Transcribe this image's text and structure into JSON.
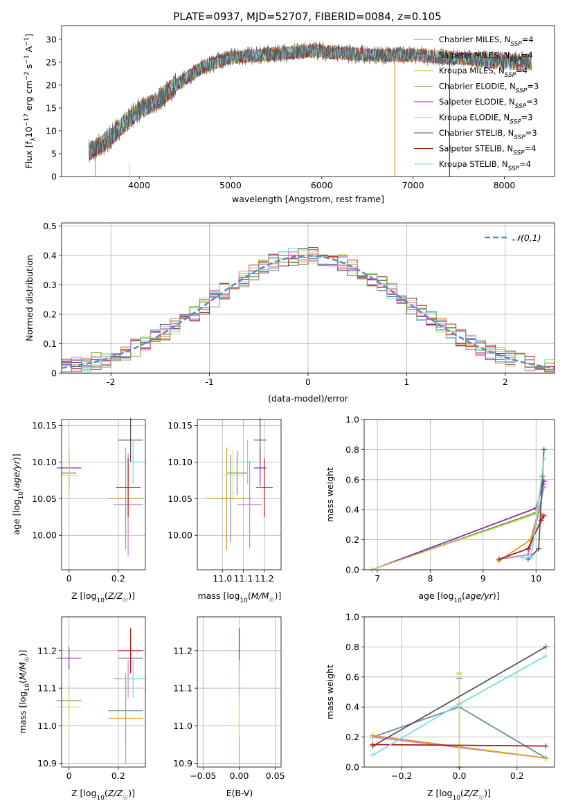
{
  "figure": {
    "title": "PLATE=0937, MJD=52707, FIBERID=0084, z=0.105",
    "normal_label": "𝒩(0,1)"
  },
  "colors": {
    "Chabrier MILES": "#6a8fa6",
    "Salpeter MILES": "#c47fd6",
    "Kroupa MILES": "#d6a020",
    "Chabrier ELODIE": "#6a9a40",
    "Salpeter ELODIE": "#8e2bb0",
    "Kroupa ELODIE": "#d8e070",
    "Chabrier STELIB": "#555555",
    "Salpeter STELIB": "#aa1c1c",
    "Kroupa STELIB": "#7ed6de",
    "normal_curve": "#5a88cc",
    "hist_extra_orange": "#e8702a",
    "hist_extra_pink": "#e080b8"
  },
  "chart_data": [
    {
      "type": "line",
      "title": "PLATE=0937, MJD=52707, FIBERID=0084, z=0.105",
      "xlabel": "wavelength [Angstrom, rest frame]",
      "ylabel": "Flux [f_λ 10^-17 erg cm^-2 s^-1 A^-1]",
      "xlim": [
        3150,
        8550
      ],
      "ylim": [
        0,
        33
      ],
      "xticks": [
        4000,
        5000,
        6000,
        7000,
        8000
      ],
      "yticks": [
        0,
        5,
        10,
        15,
        20,
        25,
        30
      ],
      "grid": false,
      "legend_position": "top-right",
      "legend": [
        "Chabrier MILES, N_SSP=4",
        "Salpeter MILES, N_SSP=4",
        "Kroupa MILES, N_SSP=4",
        "Chabrier ELODIE, N_SSP=3",
        "Salpeter ELODIE, N_SSP=3",
        "Kroupa ELODIE, N_SSP=3",
        "Chabrier STELIB, N_SSP=3",
        "Salpeter STELIB, N_SSP=4",
        "Kroupa STELIB, N_SSP=4"
      ],
      "envelope": {
        "x": [
          3450,
          3600,
          3800,
          4000,
          4200,
          4400,
          4700,
          5000,
          5300,
          5600,
          5900,
          6200,
          6600,
          7000,
          7400,
          7800,
          8300
        ],
        "y": [
          5.5,
          7,
          11,
          14.5,
          16.5,
          20,
          24,
          26,
          26.5,
          27,
          27.5,
          27,
          26.5,
          26.5,
          26,
          25.5,
          25
        ]
      },
      "dropouts": [
        {
          "x": 3520,
          "y_from": 3.5,
          "y_to": 0,
          "series": "Salpeter MILES"
        },
        {
          "x": 3890,
          "y_from": 3,
          "y_to": 0,
          "series": "Kroupa ELODIE"
        },
        {
          "x": 6800,
          "y_from": 26,
          "y_to": 0,
          "series": "Kroupa MILES"
        },
        {
          "x": 7400,
          "y_from": 26,
          "y_to": 0,
          "series": "Salpeter STELIB"
        }
      ]
    },
    {
      "type": "histogram",
      "xlabel": "(data-model)/error",
      "ylabel": "Normed distribution",
      "xlim": [
        -2.5,
        2.5
      ],
      "ylim": [
        0,
        0.51
      ],
      "xticks": [
        -2,
        -1,
        0,
        1,
        2
      ],
      "yticks": [
        0.0,
        0.1,
        0.2,
        0.3,
        0.4,
        0.5
      ],
      "grid": true,
      "legend_position": "top-right",
      "bin_width": 0.1,
      "curve": {
        "name": "𝒩(0,1)",
        "style": "dashed"
      }
    },
    {
      "type": "errorbar",
      "xlabel": "Z [log10(Z/Z☉)]",
      "ylabel": "age [log10(age/yr)]",
      "xlim": [
        -0.03,
        0.31
      ],
      "ylim": [
        9.953,
        10.158
      ],
      "xticks": [
        0.0,
        0.2
      ],
      "yticks": [
        10.0,
        10.05,
        10.1,
        10.15
      ],
      "grid": true,
      "points": [
        {
          "series": "Chabrier MILES",
          "x": 0.23,
          "xerr": 0.07,
          "y": 10.05,
          "yerr": 0.06
        },
        {
          "series": "Salpeter MILES",
          "x": 0.24,
          "xerr": 0.06,
          "y": 10.042,
          "yerr": 0.07
        },
        {
          "series": "Kroupa MILES",
          "x": 0.23,
          "xerr": 0.06,
          "y": 10.05,
          "yerr": 0.07
        },
        {
          "series": "Chabrier ELODIE",
          "x": 0.0,
          "xerr": 0.03,
          "y": 10.085,
          "yerr": 0.03
        },
        {
          "series": "Salpeter ELODIE",
          "x": 0.0,
          "xerr": 0.05,
          "y": 10.092,
          "yerr": 0.025
        },
        {
          "series": "Kroupa ELODIE",
          "x": 0.0,
          "xerr": 0.04,
          "y": 10.082,
          "yerr": 0.035
        },
        {
          "series": "Chabrier STELIB",
          "x": 0.25,
          "xerr": 0.05,
          "y": 10.13,
          "yerr": 0.03
        },
        {
          "series": "Salpeter STELIB",
          "x": 0.24,
          "xerr": 0.05,
          "y": 10.065,
          "yerr": 0.04
        },
        {
          "series": "Kroupa STELIB",
          "x": 0.26,
          "xerr": 0.05,
          "y": 10.1,
          "yerr": 0.03
        }
      ]
    },
    {
      "type": "errorbar",
      "xlabel": "mass [log10(M/M☉)]",
      "ylabel": "",
      "xlim": [
        10.88,
        11.28
      ],
      "ylim": [
        9.953,
        10.158
      ],
      "xticks": [
        11.0,
        11.1,
        11.2
      ],
      "yticks": [
        10.0,
        10.05,
        10.1,
        10.15
      ],
      "grid": true,
      "points": [
        {
          "series": "Chabrier MILES",
          "x": 11.04,
          "xerr": 0.1,
          "y": 10.05,
          "yerr": 0.06
        },
        {
          "series": "Salpeter MILES",
          "x": 11.13,
          "xerr": 0.06,
          "y": 10.042,
          "yerr": 0.06
        },
        {
          "series": "Kroupa MILES",
          "x": 11.02,
          "xerr": 0.1,
          "y": 10.05,
          "yerr": 0.07
        },
        {
          "series": "Chabrier ELODIE",
          "x": 11.07,
          "xerr": 0.05,
          "y": 10.085,
          "yerr": 0.03
        },
        {
          "series": "Salpeter ELODIE",
          "x": 11.18,
          "xerr": 0.03,
          "y": 10.092,
          "yerr": 0.025
        },
        {
          "series": "Kroupa ELODIE",
          "x": 11.05,
          "xerr": 0.05,
          "y": 10.082,
          "yerr": 0.035
        },
        {
          "series": "Chabrier STELIB",
          "x": 11.18,
          "xerr": 0.03,
          "y": 10.13,
          "yerr": 0.03
        },
        {
          "series": "Salpeter STELIB",
          "x": 11.2,
          "xerr": 0.04,
          "y": 10.065,
          "yerr": 0.04
        },
        {
          "series": "Kroupa STELIB",
          "x": 11.12,
          "xerr": 0.05,
          "y": 10.1,
          "yerr": 0.03
        }
      ]
    },
    {
      "type": "line",
      "xlabel": "age [log10(age/yr)]",
      "ylabel": "mass weight",
      "xlim": [
        6.75,
        10.35
      ],
      "ylim": [
        0,
        1
      ],
      "xticks": [
        7,
        8,
        9,
        10
      ],
      "yticks": [
        0.0,
        0.2,
        0.4,
        0.6,
        0.8,
        1.0
      ],
      "grid": true,
      "series": [
        {
          "name": "Chabrier MILES",
          "x": [
            9.3,
            9.85,
            10.0,
            10.15
          ],
          "y": [
            0.07,
            0.1,
            0.3,
            0.55
          ]
        },
        {
          "name": "Salpeter MILES",
          "x": [
            9.3,
            9.85,
            10.05,
            10.15
          ],
          "y": [
            0.07,
            0.1,
            0.38,
            0.57
          ]
        },
        {
          "name": "Kroupa MILES",
          "x": [
            9.3,
            9.9,
            10.05,
            10.12
          ],
          "y": [
            0.06,
            0.2,
            0.4,
            0.36
          ]
        },
        {
          "name": "Chabrier ELODIE",
          "x": [
            6.9,
            10.0,
            10.12
          ],
          "y": [
            0.0,
            0.38,
            0.62
          ]
        },
        {
          "name": "Salpeter ELODIE",
          "x": [
            6.9,
            10.0,
            10.15
          ],
          "y": [
            0.0,
            0.41,
            0.59
          ]
        },
        {
          "name": "Kroupa ELODIE",
          "x": [
            6.9,
            10.0,
            10.12
          ],
          "y": [
            0.0,
            0.37,
            0.63
          ]
        },
        {
          "name": "Chabrier STELIB",
          "x": [
            9.85,
            10.05,
            10.15
          ],
          "y": [
            0.07,
            0.14,
            0.8
          ]
        },
        {
          "name": "Salpeter STELIB",
          "x": [
            9.3,
            9.85,
            10.1,
            10.15
          ],
          "y": [
            0.07,
            0.14,
            0.33,
            0.36
          ]
        },
        {
          "name": "Kroupa STELIB",
          "x": [
            9.75,
            9.9,
            10.0,
            10.15
          ],
          "y": [
            0.08,
            0.08,
            0.3,
            0.74
          ]
        }
      ]
    },
    {
      "type": "errorbar",
      "xlabel": "Z [log10(Z/Z☉)]",
      "ylabel": "mass [log10(M/M☉)]",
      "xlim": [
        -0.03,
        0.31
      ],
      "ylim": [
        10.89,
        11.29
      ],
      "xticks": [
        0.0,
        0.2
      ],
      "yticks": [
        10.9,
        11.0,
        11.1,
        11.2
      ],
      "grid": true,
      "points": [
        {
          "series": "Chabrier MILES",
          "x": 0.23,
          "xerr": 0.07,
          "y": 11.04,
          "yerr": 0.08
        },
        {
          "series": "Salpeter MILES",
          "x": 0.24,
          "xerr": 0.06,
          "y": 11.125,
          "yerr": 0.05
        },
        {
          "series": "Kroupa MILES",
          "x": 0.23,
          "xerr": 0.07,
          "y": 11.02,
          "yerr": 0.12
        },
        {
          "series": "Chabrier ELODIE",
          "x": 0.0,
          "xerr": 0.05,
          "y": 11.067,
          "yerr": 0.04
        },
        {
          "series": "Salpeter ELODIE",
          "x": 0.0,
          "xerr": 0.05,
          "y": 11.18,
          "yerr": 0.03
        },
        {
          "series": "Kroupa ELODIE",
          "x": 0.0,
          "xerr": 0.05,
          "y": 11.05,
          "yerr": 0.07
        },
        {
          "series": "Chabrier STELIB",
          "x": 0.25,
          "xerr": 0.05,
          "y": 11.18,
          "yerr": 0.03
        },
        {
          "series": "Salpeter STELIB",
          "x": 0.25,
          "xerr": 0.05,
          "y": 11.2,
          "yerr": 0.06
        },
        {
          "series": "Kroupa STELIB",
          "x": 0.26,
          "xerr": 0.05,
          "y": 11.125,
          "yerr": 0.05
        }
      ]
    },
    {
      "type": "errorbar",
      "xlabel": "E(B-V)",
      "ylabel": "",
      "xlim": [
        -0.058,
        0.058
      ],
      "ylim": [
        10.89,
        11.29
      ],
      "xticks": [
        -0.05,
        0.0,
        0.05
      ],
      "yticks": [
        10.9,
        11.0,
        11.1,
        11.2
      ],
      "grid": true,
      "points": [
        {
          "series": "Kroupa MILES",
          "x": 0.0,
          "xerr": 0.0,
          "y": 11.02,
          "yerr": 0.12
        },
        {
          "series": "Kroupa ELODIE",
          "x": 0.0,
          "xerr": 0.0,
          "y": 11.05,
          "yerr": 0.08
        },
        {
          "series": "Salpeter STELIB",
          "x": 0.0,
          "xerr": 0.0,
          "y": 11.2,
          "yerr": 0.06
        },
        {
          "series": "Kroupa STELIB",
          "x": 0.0,
          "xerr": 0.0,
          "y": 11.125,
          "yerr": 0.05
        }
      ]
    },
    {
      "type": "line",
      "xlabel": "Z [log10(Z/Z☉)]",
      "ylabel": "mass weight",
      "xlim": [
        -0.33,
        0.33
      ],
      "ylim": [
        0,
        1
      ],
      "xticks": [
        -0.2,
        0.0,
        0.2
      ],
      "yticks": [
        0.0,
        0.2,
        0.4,
        0.6,
        0.8,
        1.0
      ],
      "grid": true,
      "series": [
        {
          "name": "Chabrier MILES",
          "x": [
            -0.3,
            0.0,
            0.3
          ],
          "y": [
            0.2,
            0.4,
            0.06
          ]
        },
        {
          "name": "Salpeter MILES",
          "x": [
            -0.3,
            0.3
          ],
          "y": [
            0.2,
            0.06
          ]
        },
        {
          "name": "Kroupa MILES",
          "x": [
            -0.3,
            0.3
          ],
          "y": [
            0.21,
            0.06
          ]
        },
        {
          "name": "Chabrier ELODIE",
          "x": [
            0.0,
            0.0
          ],
          "y": [
            0.0,
            0.62
          ]
        },
        {
          "name": "Salpeter ELODIE",
          "x": [
            0.0,
            0.0
          ],
          "y": [
            0.0,
            0.59
          ]
        },
        {
          "name": "Kroupa ELODIE",
          "x": [
            0.0,
            0.0
          ],
          "y": [
            0.0,
            0.63
          ]
        },
        {
          "name": "Chabrier STELIB",
          "x": [
            -0.3,
            0.3
          ],
          "y": [
            0.14,
            0.8
          ]
        },
        {
          "name": "Salpeter STELIB",
          "x": [
            -0.3,
            0.3
          ],
          "y": [
            0.15,
            0.14
          ]
        },
        {
          "name": "Kroupa STELIB",
          "x": [
            -0.3,
            0.0,
            0.3
          ],
          "y": [
            0.08,
            0.42,
            0.74
          ]
        }
      ]
    }
  ]
}
